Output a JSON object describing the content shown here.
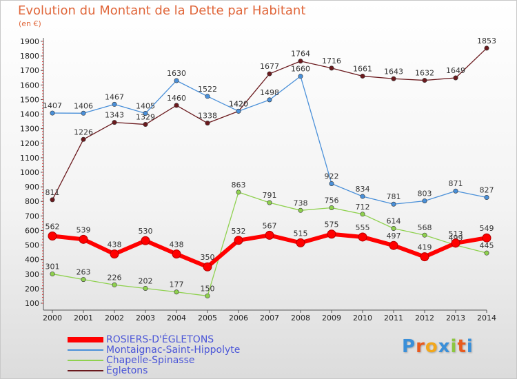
{
  "title": "Evolution du Montant de la Dette par Habitant",
  "subtitle": "(en €)",
  "logo_text": "Proxiti",
  "logo_colors": [
    "#3a8fd9",
    "#e85a1e",
    "#f2a71b",
    "#3a8fd9",
    "#8cc63f",
    "#e85a1e",
    "#3a8fd9"
  ],
  "chart_data": {
    "type": "line",
    "title": "Evolution du Montant de la Dette par Habitant",
    "ylabel": "(en €)",
    "x": [
      "2000",
      "2001",
      "2002",
      "2003",
      "2004",
      "2005",
      "2006",
      "2007",
      "2008",
      "2009",
      "2010",
      "2011",
      "2012",
      "2013",
      "2014"
    ],
    "yticks": [
      100,
      200,
      300,
      400,
      500,
      600,
      700,
      800,
      900,
      1000,
      1100,
      1200,
      1300,
      1400,
      1500,
      1600,
      1700,
      1800,
      1900
    ],
    "ylim": [
      100,
      1900
    ],
    "grid": false,
    "legend_position": "bottom-left",
    "series": [
      {
        "name": "Égletons",
        "color": "#6b1a1e",
        "values": [
          811,
          1226,
          1343,
          1329,
          1460,
          1338,
          1420,
          1677,
          1764,
          1716,
          1661,
          1643,
          1632,
          1649,
          1853
        ]
      },
      {
        "name": "Montaignac-Saint-Hippolyte",
        "color": "#4a90d9",
        "values": [
          1407,
          1406,
          1467,
          1405,
          1630,
          1522,
          1420,
          1498,
          1660,
          922,
          834,
          781,
          803,
          871,
          827
        ]
      },
      {
        "name": "Chapelle-Spinasse",
        "color": "#8fd14f",
        "values": [
          301,
          263,
          226,
          202,
          177,
          150,
          863,
          791,
          738,
          756,
          712,
          614,
          568,
          499,
          445
        ]
      },
      {
        "name": "ROSIERS-D'ÉGLETONS",
        "color": "#ff0000",
        "values": [
          562,
          539,
          438,
          530,
          438,
          350,
          532,
          567,
          515,
          575,
          555,
          497,
          419,
          513,
          549
        ]
      }
    ]
  },
  "legend": [
    {
      "label": "ROSIERS-D'ÉGLETONS",
      "color": "#ff0000"
    },
    {
      "label": "Montaignac-Saint-Hippolyte",
      "color": "#4a90d9"
    },
    {
      "label": "Chapelle-Spinasse",
      "color": "#8fd14f"
    },
    {
      "label": "Égletons",
      "color": "#6b1a1e"
    }
  ]
}
